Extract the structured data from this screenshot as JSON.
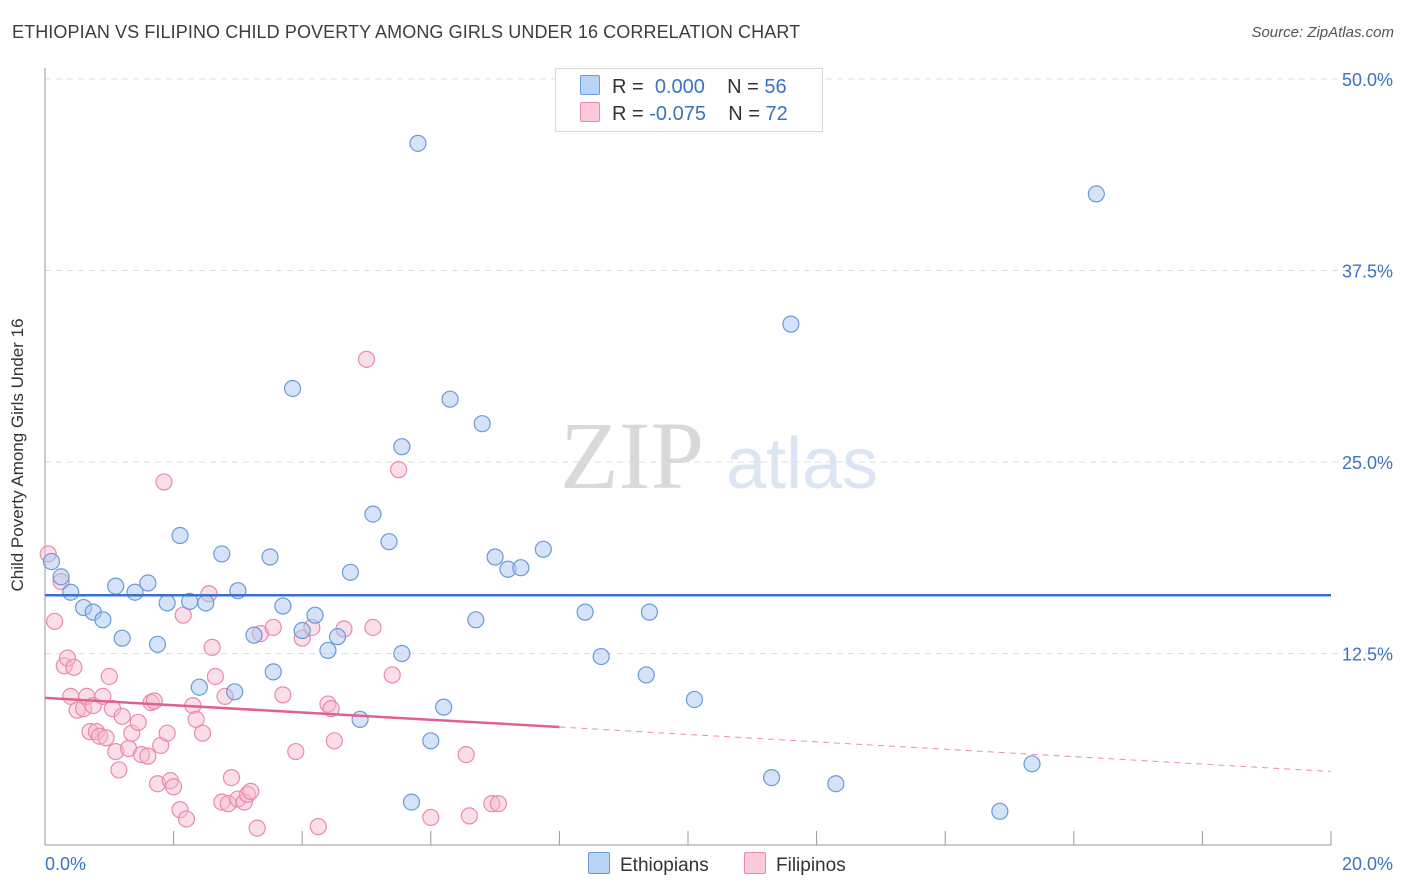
{
  "title": "ETHIOPIAN VS FILIPINO CHILD POVERTY AMONG GIRLS UNDER 16 CORRELATION CHART",
  "source": "Source: ZipAtlas.com",
  "watermark": {
    "zip": "ZIP",
    "atlas": "atlas"
  },
  "legend": {
    "rows": [
      {
        "r_label": "R =",
        "r_value": "0.000",
        "n_label": "N =",
        "n_value": "56"
      },
      {
        "r_label": "R =",
        "r_value": "-0.075",
        "n_label": "N =",
        "n_value": "72"
      }
    ]
  },
  "bottom_legend": {
    "ethiopians": "Ethiopians",
    "filipinos": "Filipinos"
  },
  "colors": {
    "ethiopians_fill": "#a9c8f0",
    "ethiopians_stroke": "#6b9ad8",
    "ethiopians_line": "#3b72c4",
    "filipinos_fill": "#f7b9cc",
    "filipinos_stroke": "#ea8aa8",
    "filipinos_line": "#e06090",
    "axis_label": "#3b72c4"
  },
  "chart_data": {
    "type": "scatter",
    "title": "ETHIOPIAN VS FILIPINO CHILD POVERTY AMONG GIRLS UNDER 16 CORRELATION CHART",
    "xlabel": "",
    "ylabel": "Child Poverty Among Girls Under 16",
    "xlim": [
      0,
      20
    ],
    "ylim": [
      0,
      50
    ],
    "x_tick_labels": [
      "0.0%",
      "20.0%"
    ],
    "y_ticks": [
      12.5,
      25.0,
      37.5,
      50.0
    ],
    "y_tick_labels": [
      "12.5%",
      "25.0%",
      "37.5%",
      "50.0%"
    ],
    "grid": true,
    "legend_position": "top-center",
    "series": [
      {
        "name": "Ethiopians",
        "r": 0.0,
        "n": 56,
        "trend": {
          "x": [
            0,
            20
          ],
          "y": [
            16.3,
            16.3
          ]
        },
        "points": [
          [
            0.1,
            18.5
          ],
          [
            0.25,
            17.5
          ],
          [
            0.4,
            16.5
          ],
          [
            0.6,
            15.5
          ],
          [
            0.75,
            15.2
          ],
          [
            0.9,
            14.7
          ],
          [
            1.1,
            16.9
          ],
          [
            1.2,
            13.5
          ],
          [
            1.4,
            16.5
          ],
          [
            1.6,
            17.1
          ],
          [
            1.75,
            13.1
          ],
          [
            1.9,
            15.8
          ],
          [
            2.1,
            20.2
          ],
          [
            2.25,
            15.9
          ],
          [
            2.4,
            10.3
          ],
          [
            2.5,
            15.8
          ],
          [
            2.75,
            19.0
          ],
          [
            2.95,
            10.0
          ],
          [
            3.0,
            16.6
          ],
          [
            3.25,
            13.7
          ],
          [
            3.5,
            18.8
          ],
          [
            3.55,
            11.3
          ],
          [
            3.7,
            15.6
          ],
          [
            3.85,
            29.8
          ],
          [
            4.0,
            14.0
          ],
          [
            4.2,
            15.0
          ],
          [
            4.4,
            12.7
          ],
          [
            4.55,
            13.6
          ],
          [
            4.75,
            17.8
          ],
          [
            4.9,
            8.2
          ],
          [
            5.1,
            21.6
          ],
          [
            5.35,
            19.8
          ],
          [
            5.55,
            12.5
          ],
          [
            5.55,
            26.0
          ],
          [
            5.7,
            2.8
          ],
          [
            5.8,
            45.8
          ],
          [
            6.0,
            6.8
          ],
          [
            6.2,
            9.0
          ],
          [
            6.3,
            29.1
          ],
          [
            6.7,
            14.7
          ],
          [
            6.8,
            27.5
          ],
          [
            7.0,
            18.8
          ],
          [
            7.2,
            18.0
          ],
          [
            7.4,
            18.1
          ],
          [
            7.75,
            19.3
          ],
          [
            8.4,
            15.2
          ],
          [
            8.65,
            12.3
          ],
          [
            9.4,
            15.2
          ],
          [
            9.35,
            11.1
          ],
          [
            10.1,
            9.5
          ],
          [
            11.3,
            4.4
          ],
          [
            11.6,
            34.0
          ],
          [
            12.3,
            4.0
          ],
          [
            14.85,
            2.2
          ],
          [
            15.35,
            5.3
          ],
          [
            16.35,
            42.5
          ]
        ]
      },
      {
        "name": "Filipinos",
        "r": -0.075,
        "n": 72,
        "trend": {
          "x": [
            0,
            8.0
          ],
          "y": [
            9.6,
            7.7
          ]
        },
        "trend_dashed": {
          "x": [
            8.0,
            20
          ],
          "y": [
            7.7,
            4.8
          ]
        },
        "points": [
          [
            0.05,
            19.0
          ],
          [
            0.15,
            14.6
          ],
          [
            0.25,
            17.2
          ],
          [
            0.3,
            11.7
          ],
          [
            0.35,
            12.2
          ],
          [
            0.4,
            9.7
          ],
          [
            0.45,
            11.6
          ],
          [
            0.5,
            8.8
          ],
          [
            0.6,
            8.9
          ],
          [
            0.65,
            9.7
          ],
          [
            0.7,
            7.4
          ],
          [
            0.75,
            9.1
          ],
          [
            0.8,
            7.4
          ],
          [
            0.85,
            7.1
          ],
          [
            0.9,
            9.7
          ],
          [
            0.95,
            7.0
          ],
          [
            1.05,
            8.9
          ],
          [
            1.1,
            6.1
          ],
          [
            1.15,
            4.9
          ],
          [
            1.2,
            8.4
          ],
          [
            1.3,
            6.3
          ],
          [
            1.35,
            7.3
          ],
          [
            1.45,
            8.0
          ],
          [
            1.5,
            5.9
          ],
          [
            1.6,
            5.8
          ],
          [
            1.65,
            9.3
          ],
          [
            1.7,
            9.4
          ],
          [
            1.75,
            4.0
          ],
          [
            1.8,
            6.5
          ],
          [
            1.85,
            23.7
          ],
          [
            1.9,
            7.3
          ],
          [
            1.95,
            4.2
          ],
          [
            2.0,
            3.8
          ],
          [
            2.1,
            2.3
          ],
          [
            2.15,
            15.0
          ],
          [
            2.2,
            1.7
          ],
          [
            2.3,
            9.1
          ],
          [
            2.35,
            8.2
          ],
          [
            2.45,
            7.3
          ],
          [
            2.55,
            16.4
          ],
          [
            2.6,
            12.9
          ],
          [
            2.65,
            11.0
          ],
          [
            2.75,
            2.8
          ],
          [
            2.85,
            2.7
          ],
          [
            2.9,
            4.4
          ],
          [
            3.0,
            3.0
          ],
          [
            3.1,
            2.8
          ],
          [
            3.15,
            3.3
          ],
          [
            3.2,
            3.5
          ],
          [
            3.3,
            1.1
          ],
          [
            3.35,
            13.8
          ],
          [
            3.55,
            14.2
          ],
          [
            3.7,
            9.8
          ],
          [
            3.9,
            6.1
          ],
          [
            4.0,
            13.5
          ],
          [
            4.15,
            14.2
          ],
          [
            4.25,
            1.2
          ],
          [
            4.4,
            9.2
          ],
          [
            4.45,
            8.9
          ],
          [
            4.5,
            6.8
          ],
          [
            4.65,
            14.1
          ],
          [
            5.0,
            31.7
          ],
          [
            5.1,
            14.2
          ],
          [
            5.4,
            11.1
          ],
          [
            5.5,
            24.5
          ],
          [
            6.0,
            1.8
          ],
          [
            6.55,
            5.9
          ],
          [
            6.6,
            1.9
          ],
          [
            6.95,
            2.7
          ],
          [
            7.05,
            2.7
          ],
          [
            2.8,
            9.7
          ],
          [
            1.0,
            11.0
          ]
        ]
      }
    ]
  }
}
